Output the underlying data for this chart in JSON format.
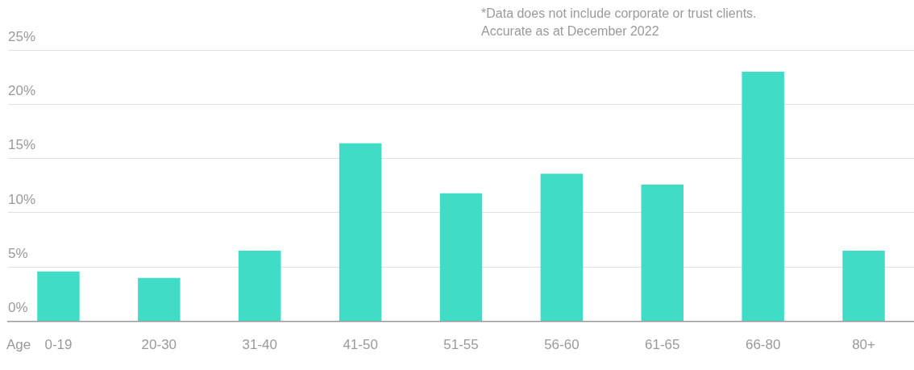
{
  "chart_data": {
    "type": "bar",
    "xlabel": "Age",
    "categories": [
      "0-19",
      "20-30",
      "31-40",
      "41-50",
      "51-55",
      "56-60",
      "61-65",
      "66-80",
      "80+"
    ],
    "values": [
      4.6,
      4.0,
      6.5,
      16.4,
      11.8,
      13.6,
      12.6,
      23.0,
      6.5
    ],
    "color": "#40dcc6",
    "ylim": [
      0,
      25
    ],
    "yticks": [
      {
        "value": 0,
        "label": "0%"
      },
      {
        "value": 5,
        "label": "5%"
      },
      {
        "value": 10,
        "label": "10%"
      },
      {
        "value": 15,
        "label": "15%"
      },
      {
        "value": 20,
        "label": "20%"
      },
      {
        "value": 25,
        "label": "25%"
      }
    ],
    "grid": "y",
    "legend": false,
    "annotations": [
      "*Data does not include corporate or trust clients.",
      "Accurate as at December 2022"
    ]
  }
}
